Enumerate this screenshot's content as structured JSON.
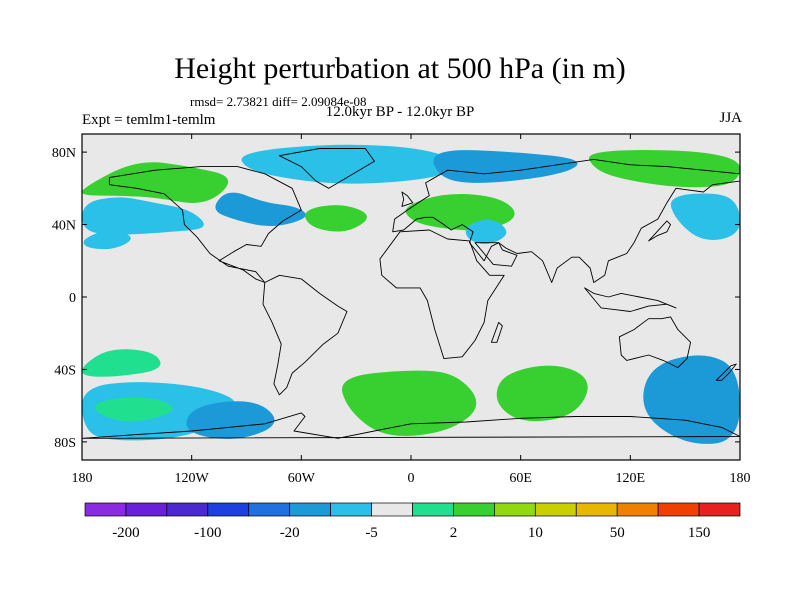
{
  "title": "Height perturbation at 500 hPa (in m)",
  "stats": "rmsd= 2.73821 diff= 2.09084e-08",
  "period": "12.0kyr BP - 12.0kyr BP",
  "experiment": "Expt = temlm1-temlm",
  "season": "JJA",
  "chart_data": {
    "type": "heatmap",
    "projection": "cylindrical-equidistant",
    "variable": "500 hPa geopotential height perturbation",
    "units": "m",
    "xlim": [
      -180,
      180
    ],
    "ylim": [
      -90,
      90
    ],
    "x_ticks": [
      {
        "value": -180,
        "label": "180"
      },
      {
        "value": -120,
        "label": "120W"
      },
      {
        "value": -60,
        "label": "60W"
      },
      {
        "value": 0,
        "label": "0"
      },
      {
        "value": 60,
        "label": "60E"
      },
      {
        "value": 120,
        "label": "120E"
      },
      {
        "value": 180,
        "label": "180"
      }
    ],
    "y_ticks": [
      {
        "value": 80,
        "label": "80N"
      },
      {
        "value": 40,
        "label": "40N"
      },
      {
        "value": 0,
        "label": "0"
      },
      {
        "value": -40,
        "label": "40S"
      },
      {
        "value": -80,
        "label": "80S"
      }
    ],
    "background_color": "#e8e8e8",
    "colorbar": {
      "colors": [
        "#8a2be2",
        "#6a1fd8",
        "#4a2ad0",
        "#1e40e0",
        "#2070e0",
        "#1c9ad8",
        "#2bc0e8",
        "#e8e8e8",
        "#20e090",
        "#38d030",
        "#90d810",
        "#c8d000",
        "#e8b800",
        "#f08000",
        "#f04000",
        "#e82020"
      ],
      "tick_labels": [
        "-200",
        "-100",
        "-20",
        "-5",
        "2",
        "10",
        "50",
        "150"
      ]
    },
    "regions": [
      {
        "name": "N Pacific / Alaska positive",
        "color": "#38d030",
        "lonlat": [
          [
            -180,
            60
          ],
          [
            -150,
            76
          ],
          [
            -120,
            72
          ],
          [
            -95,
            66
          ],
          [
            -112,
            50
          ],
          [
            -140,
            55
          ],
          [
            -160,
            56
          ],
          [
            -180,
            56
          ]
        ]
      },
      {
        "name": "N Pacific negative band",
        "color": "#2bc0e8",
        "lonlat": [
          [
            -180,
            52
          ],
          [
            -160,
            56
          ],
          [
            -140,
            52
          ],
          [
            -120,
            48
          ],
          [
            -110,
            38
          ],
          [
            -130,
            36
          ],
          [
            -160,
            34
          ],
          [
            -180,
            36
          ]
        ]
      },
      {
        "name": "NE Pacific negative",
        "color": "#2bc0e8",
        "lonlat": [
          [
            -180,
            32
          ],
          [
            -165,
            38
          ],
          [
            -150,
            33
          ],
          [
            -162,
            26
          ],
          [
            -178,
            27
          ]
        ]
      },
      {
        "name": "N America / Atlantic negative",
        "color": "#1c9ad8",
        "lonlat": [
          [
            -100,
            60
          ],
          [
            -80,
            52
          ],
          [
            -62,
            50
          ],
          [
            -55,
            44
          ],
          [
            -75,
            38
          ],
          [
            -95,
            42
          ],
          [
            -110,
            48
          ]
        ]
      },
      {
        "name": "N Atlantic positive",
        "color": "#38d030",
        "lonlat": [
          [
            -60,
            48
          ],
          [
            -38,
            52
          ],
          [
            -20,
            45
          ],
          [
            -35,
            35
          ],
          [
            -55,
            38
          ]
        ]
      },
      {
        "name": "Greenland/Arctic negative",
        "color": "#2bc0e8",
        "lonlat": [
          [
            -95,
            80
          ],
          [
            -40,
            85
          ],
          [
            10,
            82
          ],
          [
            30,
            72
          ],
          [
            10,
            65
          ],
          [
            -30,
            62
          ],
          [
            -60,
            64
          ],
          [
            -90,
            70
          ]
        ]
      },
      {
        "name": "Eurasia Arctic negative",
        "color": "#1c9ad8",
        "lonlat": [
          [
            10,
            82
          ],
          [
            60,
            80
          ],
          [
            95,
            76
          ],
          [
            85,
            68
          ],
          [
            40,
            62
          ],
          [
            15,
            65
          ]
        ]
      },
      {
        "name": "Europe positive",
        "color": "#38d030",
        "lonlat": [
          [
            -5,
            50
          ],
          [
            20,
            58
          ],
          [
            50,
            55
          ],
          [
            60,
            44
          ],
          [
            40,
            36
          ],
          [
            15,
            38
          ],
          [
            0,
            42
          ]
        ]
      },
      {
        "name": "Middle East negative",
        "color": "#2bc0e8",
        "lonlat": [
          [
            30,
            40
          ],
          [
            45,
            44
          ],
          [
            55,
            35
          ],
          [
            42,
            28
          ],
          [
            30,
            32
          ]
        ]
      },
      {
        "name": "Siberia positive",
        "color": "#38d030",
        "lonlat": [
          [
            95,
            82
          ],
          [
            180,
            80
          ],
          [
            180,
            62
          ],
          [
            150,
            60
          ],
          [
            120,
            64
          ],
          [
            100,
            70
          ]
        ]
      },
      {
        "name": "NW Pacific negative",
        "color": "#2bc0e8",
        "lonlat": [
          [
            140,
            56
          ],
          [
            170,
            58
          ],
          [
            180,
            50
          ],
          [
            180,
            34
          ],
          [
            160,
            30
          ],
          [
            145,
            42
          ]
        ]
      },
      {
        "name": "S Pacific positive",
        "color": "#20e090",
        "lonlat": [
          [
            -180,
            -38
          ],
          [
            -165,
            -28
          ],
          [
            -140,
            -30
          ],
          [
            -135,
            -40
          ],
          [
            -160,
            -44
          ],
          [
            -180,
            -44
          ]
        ]
      },
      {
        "name": "S Pacific negative",
        "color": "#2bc0e8",
        "lonlat": [
          [
            -180,
            -50
          ],
          [
            -150,
            -46
          ],
          [
            -110,
            -50
          ],
          [
            -90,
            -60
          ],
          [
            -120,
            -78
          ],
          [
            -170,
            -80
          ],
          [
            -180,
            -70
          ]
        ]
      },
      {
        "name": "S Pacific central positive",
        "color": "#20e090",
        "lonlat": [
          [
            -175,
            -58
          ],
          [
            -145,
            -54
          ],
          [
            -125,
            -62
          ],
          [
            -150,
            -70
          ],
          [
            -170,
            -66
          ]
        ]
      },
      {
        "name": "SE Pacific negative",
        "color": "#1c9ad8",
        "lonlat": [
          [
            -120,
            -60
          ],
          [
            -85,
            -56
          ],
          [
            -70,
            -70
          ],
          [
            -95,
            -80
          ],
          [
            -125,
            -75
          ]
        ]
      },
      {
        "name": "S Atlantic positive",
        "color": "#38d030",
        "lonlat": [
          [
            -40,
            -44
          ],
          [
            0,
            -40
          ],
          [
            25,
            -42
          ],
          [
            40,
            -60
          ],
          [
            20,
            -75
          ],
          [
            -15,
            -78
          ],
          [
            -35,
            -62
          ]
        ]
      },
      {
        "name": "S Indian Ocean positive",
        "color": "#38d030",
        "lonlat": [
          [
            50,
            -42
          ],
          [
            80,
            -36
          ],
          [
            100,
            -46
          ],
          [
            90,
            -66
          ],
          [
            60,
            -70
          ],
          [
            45,
            -58
          ]
        ]
      },
      {
        "name": "SW Pacific negative",
        "color": "#1c9ad8",
        "lonlat": [
          [
            130,
            -38
          ],
          [
            160,
            -30
          ],
          [
            180,
            -40
          ],
          [
            180,
            -80
          ],
          [
            150,
            -82
          ],
          [
            125,
            -64
          ]
        ]
      }
    ]
  },
  "map_outlines": {
    "N America": [
      [
        -165,
        66
      ],
      [
        -140,
        70
      ],
      [
        -115,
        72
      ],
      [
        -95,
        72
      ],
      [
        -80,
        68
      ],
      [
        -65,
        60
      ],
      [
        -60,
        48
      ],
      [
        -70,
        42
      ],
      [
        -78,
        35
      ],
      [
        -82,
        28
      ],
      [
        -90,
        29
      ],
      [
        -97,
        25
      ],
      [
        -105,
        20
      ],
      [
        -92,
        15
      ],
      [
        -85,
        10
      ],
      [
        -80,
        8
      ],
      [
        -85,
        14
      ],
      [
        -100,
        17
      ],
      [
        -110,
        24
      ],
      [
        -117,
        33
      ],
      [
        -124,
        40
      ],
      [
        -125,
        48
      ],
      [
        -135,
        57
      ],
      [
        -150,
        60
      ],
      [
        -165,
        62
      ]
    ],
    "Greenland": [
      [
        -72,
        78
      ],
      [
        -50,
        82
      ],
      [
        -25,
        82
      ],
      [
        -20,
        75
      ],
      [
        -35,
        66
      ],
      [
        -45,
        60
      ],
      [
        -52,
        64
      ],
      [
        -60,
        72
      ]
    ],
    "S America": [
      [
        -80,
        8
      ],
      [
        -72,
        12
      ],
      [
        -60,
        10
      ],
      [
        -50,
        2
      ],
      [
        -40,
        -5
      ],
      [
        -35,
        -8
      ],
      [
        -40,
        -20
      ],
      [
        -48,
        -26
      ],
      [
        -58,
        -36
      ],
      [
        -65,
        -42
      ],
      [
        -68,
        -50
      ],
      [
        -72,
        -54
      ],
      [
        -75,
        -48
      ],
      [
        -73,
        -38
      ],
      [
        -71,
        -26
      ],
      [
        -76,
        -14
      ],
      [
        -81,
        -4
      ]
    ],
    "Eurasia": [
      [
        -10,
        36
      ],
      [
        -9,
        43
      ],
      [
        -2,
        48
      ],
      [
        4,
        52
      ],
      [
        10,
        56
      ],
      [
        8,
        63
      ],
      [
        20,
        70
      ],
      [
        40,
        68
      ],
      [
        60,
        70
      ],
      [
        80,
        73
      ],
      [
        100,
        76
      ],
      [
        120,
        73
      ],
      [
        140,
        72
      ],
      [
        160,
        70
      ],
      [
        180,
        68
      ],
      [
        180,
        64
      ],
      [
        165,
        62
      ],
      [
        160,
        58
      ],
      [
        145,
        60
      ],
      [
        140,
        52
      ],
      [
        135,
        43
      ],
      [
        126,
        38
      ],
      [
        122,
        30
      ],
      [
        118,
        24
      ],
      [
        108,
        20
      ],
      [
        106,
        12
      ],
      [
        100,
        8
      ],
      [
        98,
        16
      ],
      [
        92,
        22
      ],
      [
        88,
        22
      ],
      [
        80,
        16
      ],
      [
        77,
        8
      ],
      [
        72,
        20
      ],
      [
        66,
        25
      ],
      [
        58,
        24
      ],
      [
        52,
        27
      ],
      [
        48,
        30
      ],
      [
        44,
        28
      ],
      [
        40,
        20
      ],
      [
        32,
        30
      ],
      [
        34,
        36
      ],
      [
        28,
        40
      ],
      [
        22,
        37
      ],
      [
        18,
        40
      ],
      [
        12,
        44
      ],
      [
        8,
        44
      ],
      [
        3,
        43
      ],
      [
        -4,
        37
      ]
    ],
    "Africa": [
      [
        -17,
        21
      ],
      [
        -6,
        36
      ],
      [
        10,
        37
      ],
      [
        20,
        32
      ],
      [
        32,
        31
      ],
      [
        36,
        20
      ],
      [
        43,
        12
      ],
      [
        51,
        12
      ],
      [
        42,
        -2
      ],
      [
        40,
        -14
      ],
      [
        35,
        -24
      ],
      [
        28,
        -33
      ],
      [
        18,
        -34
      ],
      [
        13,
        -18
      ],
      [
        9,
        -2
      ],
      [
        5,
        5
      ],
      [
        -8,
        5
      ],
      [
        -16,
        12
      ]
    ],
    "Arabia": [
      [
        35,
        30
      ],
      [
        45,
        18
      ],
      [
        55,
        17
      ],
      [
        58,
        23
      ],
      [
        50,
        26
      ],
      [
        48,
        30
      ]
    ],
    "Australia": [
      [
        114,
        -22
      ],
      [
        122,
        -18
      ],
      [
        130,
        -12
      ],
      [
        137,
        -12
      ],
      [
        142,
        -11
      ],
      [
        146,
        -18
      ],
      [
        153,
        -25
      ],
      [
        151,
        -34
      ],
      [
        146,
        -39
      ],
      [
        138,
        -35
      ],
      [
        130,
        -32
      ],
      [
        118,
        -35
      ],
      [
        115,
        -32
      ]
    ],
    "Antarctica": [
      [
        -180,
        -78
      ],
      [
        -150,
        -76
      ],
      [
        -120,
        -74
      ],
      [
        -100,
        -72
      ],
      [
        -80,
        -70
      ],
      [
        -60,
        -64
      ],
      [
        -58,
        -66
      ],
      [
        -64,
        -74
      ],
      [
        -40,
        -78
      ],
      [
        -20,
        -74
      ],
      [
        0,
        -70
      ],
      [
        30,
        -69
      ],
      [
        60,
        -67
      ],
      [
        90,
        -66
      ],
      [
        120,
        -66
      ],
      [
        150,
        -68
      ],
      [
        170,
        -72
      ],
      [
        180,
        -77
      ]
    ],
    "Indonesia": [
      [
        95,
        5
      ],
      [
        104,
        -6
      ],
      [
        112,
        -7
      ],
      [
        120,
        -8
      ],
      [
        130,
        -5
      ],
      [
        140,
        -4
      ],
      [
        145,
        -6
      ],
      [
        135,
        -2
      ],
      [
        125,
        0
      ],
      [
        115,
        2
      ],
      [
        108,
        0
      ],
      [
        100,
        2
      ]
    ],
    "Japan": [
      [
        130,
        31
      ],
      [
        135,
        34
      ],
      [
        140,
        36
      ],
      [
        142,
        40
      ],
      [
        140,
        42
      ]
    ],
    "UK": [
      [
        -5,
        50
      ],
      [
        1,
        52
      ],
      [
        -2,
        56
      ],
      [
        -5,
        58
      ],
      [
        -4,
        54
      ]
    ],
    "NZ": [
      [
        167,
        -46
      ],
      [
        172,
        -41
      ],
      [
        175,
        -38
      ],
      [
        178,
        -37
      ],
      [
        174,
        -42
      ],
      [
        170,
        -46
      ]
    ],
    "Madagascar": [
      [
        44,
        -25
      ],
      [
        48,
        -14
      ],
      [
        50,
        -16
      ],
      [
        47,
        -25
      ]
    ]
  }
}
